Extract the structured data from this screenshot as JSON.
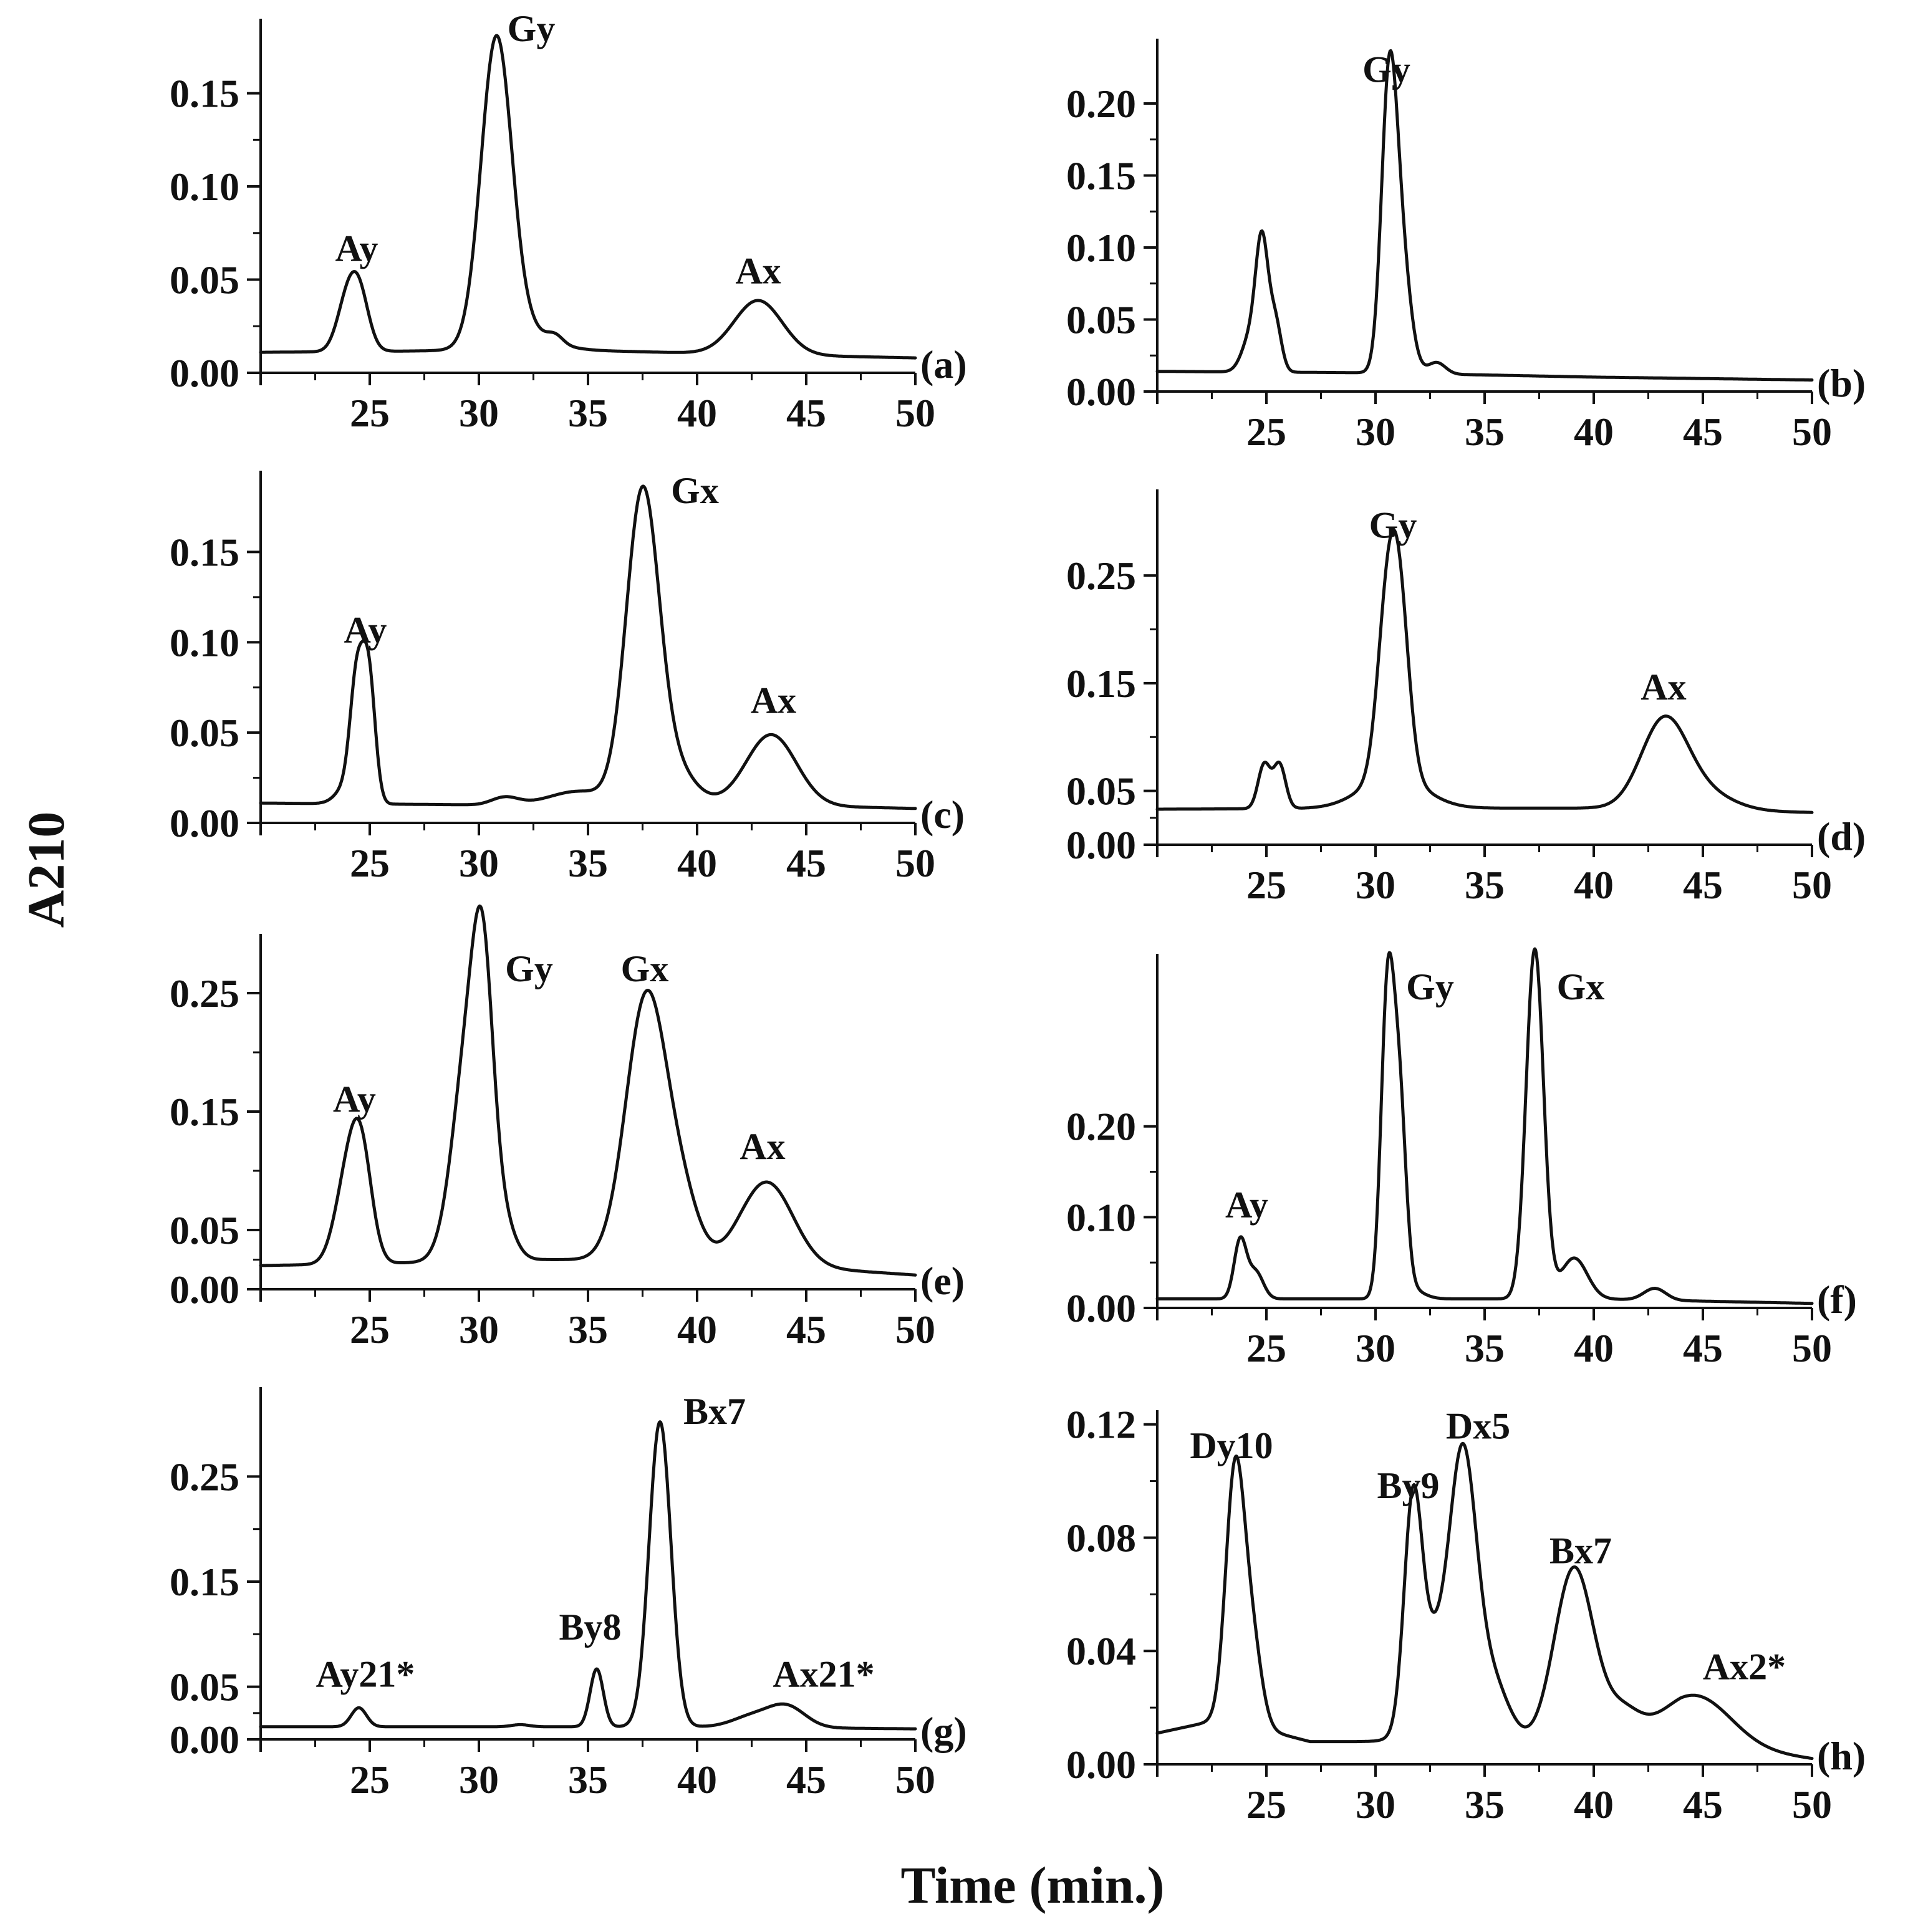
{
  "figure": {
    "ylabel": "A210",
    "xlabel": "Time (min.)"
  },
  "chart_data": [
    {
      "type": "line",
      "panel": "(a)",
      "xlim": [
        20,
        50
      ],
      "ylim": [
        0,
        0.19
      ],
      "xticks": [
        25,
        30,
        35,
        40,
        45,
        50
      ],
      "yticks": [
        0,
        0.05,
        0.1,
        0.15
      ],
      "ytick_labels": [
        "0.00",
        "0.05",
        "0.10",
        "0.15"
      ],
      "baseline": [
        [
          20,
          0.011
        ],
        [
          30,
          0.012
        ],
        [
          35,
          0.012
        ],
        [
          42,
          0.01
        ],
        [
          50,
          0.008
        ]
      ],
      "peaks": [
        {
          "t": 23.9,
          "h": 0.022,
          "w": 0.45
        },
        {
          "t": 24.5,
          "h": 0.031,
          "w": 0.45
        },
        {
          "t": 30.8,
          "h": 0.16,
          "w": 0.7
        },
        {
          "t": 31.8,
          "h": 0.012,
          "w": 1.3
        },
        {
          "t": 33.5,
          "h": 0.004,
          "w": 0.35
        },
        {
          "t": 42.8,
          "h": 0.029,
          "w": 1.1
        }
      ],
      "annotations": [
        {
          "text": "Ay",
          "x": 24.4,
          "y": 0.06
        },
        {
          "text": "Gy",
          "x": 32.4,
          "y": 0.178
        },
        {
          "text": "Ax",
          "x": 42.8,
          "y": 0.048
        }
      ]
    },
    {
      "type": "line",
      "panel": "(b)",
      "xlim": [
        20,
        50
      ],
      "ylim": [
        0,
        0.245
      ],
      "xticks": [
        25,
        30,
        35,
        40,
        45,
        50
      ],
      "yticks": [
        0,
        0.05,
        0.1,
        0.15,
        0.2
      ],
      "ytick_labels": [
        "0.00",
        "0.05",
        "0.10",
        "0.15",
        "0.20"
      ],
      "baseline": [
        [
          20,
          0.014
        ],
        [
          30,
          0.013
        ],
        [
          40,
          0.01
        ],
        [
          50,
          0.008
        ]
      ],
      "peaks": [
        {
          "t": 24.3,
          "h": 0.025,
          "w": 0.4
        },
        {
          "t": 24.8,
          "h": 0.083,
          "w": 0.28
        },
        {
          "t": 25.4,
          "h": 0.035,
          "w": 0.28
        },
        {
          "t": 30.6,
          "h": 0.17,
          "w": 0.35
        },
        {
          "t": 31.1,
          "h": 0.09,
          "w": 0.45
        },
        {
          "t": 32.8,
          "h": 0.008,
          "w": 0.4
        }
      ],
      "annotations": [
        {
          "text": "Gy",
          "x": 30.5,
          "y": 0.215
        }
      ]
    },
    {
      "type": "line",
      "panel": "(c)",
      "xlim": [
        20,
        50
      ],
      "ylim": [
        0,
        0.195
      ],
      "xticks": [
        25,
        30,
        35,
        40,
        45,
        50
      ],
      "yticks": [
        0,
        0.05,
        0.1,
        0.15
      ],
      "ytick_labels": [
        "0.00",
        "0.05",
        "0.10",
        "0.15"
      ],
      "baseline": [
        [
          20,
          0.011
        ],
        [
          30,
          0.01
        ],
        [
          36,
          0.012
        ],
        [
          50,
          0.008
        ]
      ],
      "peaks": [
        {
          "t": 24.0,
          "h": 0.01,
          "w": 0.5
        },
        {
          "t": 24.4,
          "h": 0.061,
          "w": 0.3
        },
        {
          "t": 24.95,
          "h": 0.07,
          "w": 0.3
        },
        {
          "t": 31.2,
          "h": 0.004,
          "w": 0.6
        },
        {
          "t": 34.5,
          "h": 0.006,
          "w": 1.2
        },
        {
          "t": 37.5,
          "h": 0.17,
          "w": 0.75
        },
        {
          "t": 39.0,
          "h": 0.018,
          "w": 0.9
        },
        {
          "t": 43.4,
          "h": 0.039,
          "w": 1.15
        }
      ],
      "annotations": [
        {
          "text": "Ay",
          "x": 24.8,
          "y": 0.1
        },
        {
          "text": "Gx",
          "x": 39.9,
          "y": 0.177
        },
        {
          "text": "Ax",
          "x": 43.5,
          "y": 0.061
        }
      ]
    },
    {
      "type": "line",
      "panel": "(d)",
      "xlim": [
        20,
        50
      ],
      "ylim": [
        0,
        0.33
      ],
      "xticks": [
        25,
        30,
        35,
        40,
        45,
        50
      ],
      "yticks": [
        0,
        0.05,
        0.15,
        0.25
      ],
      "ytick_labels": [
        "0.00",
        "0.05",
        "0.15",
        "0.25"
      ],
      "baseline": [
        [
          20,
          0.033
        ],
        [
          30,
          0.034
        ],
        [
          40,
          0.034
        ],
        [
          50,
          0.03
        ]
      ],
      "peaks": [
        {
          "t": 24.9,
          "h": 0.041,
          "w": 0.28
        },
        {
          "t": 25.6,
          "h": 0.041,
          "w": 0.28
        },
        {
          "t": 30.5,
          "h": 0.135,
          "w": 0.45
        },
        {
          "t": 31.1,
          "h": 0.15,
          "w": 0.45
        },
        {
          "t": 30.8,
          "h": 0.03,
          "w": 1.4
        },
        {
          "t": 43.2,
          "h": 0.077,
          "w": 1.05
        },
        {
          "t": 44.8,
          "h": 0.018,
          "w": 1.4
        }
      ],
      "annotations": [
        {
          "text": "Gy",
          "x": 30.8,
          "y": 0.285
        },
        {
          "text": "Ax",
          "x": 43.2,
          "y": 0.135
        }
      ]
    },
    {
      "type": "line",
      "panel": "(e)",
      "xlim": [
        20,
        50
      ],
      "ylim": [
        0,
        0.3
      ],
      "xticks": [
        25,
        30,
        35,
        40,
        45,
        50
      ],
      "yticks": [
        0,
        0.05,
        0.15,
        0.25
      ],
      "ytick_labels": [
        "0.00",
        "0.05",
        "0.15",
        "0.25"
      ],
      "baseline": [
        [
          20,
          0.02
        ],
        [
          26,
          0.022
        ],
        [
          28,
          0.023
        ],
        [
          33,
          0.025
        ],
        [
          36,
          0.025
        ],
        [
          42,
          0.022
        ],
        [
          50,
          0.012
        ]
      ],
      "peaks": [
        {
          "t": 23.9,
          "h": 0.06,
          "w": 0.55
        },
        {
          "t": 24.6,
          "h": 0.09,
          "w": 0.5
        },
        {
          "t": 29.6,
          "h": 0.19,
          "w": 0.75
        },
        {
          "t": 30.2,
          "h": 0.14,
          "w": 0.45
        },
        {
          "t": 31.0,
          "h": 0.03,
          "w": 0.6
        },
        {
          "t": 37.7,
          "h": 0.225,
          "w": 0.95
        },
        {
          "t": 39.4,
          "h": 0.04,
          "w": 0.75
        },
        {
          "t": 43.2,
          "h": 0.07,
          "w": 1.2
        }
      ],
      "annotations": [
        {
          "text": "Ay",
          "x": 24.3,
          "y": 0.15
        },
        {
          "text": "Gy",
          "x": 32.3,
          "y": 0.26
        },
        {
          "text": "Gx",
          "x": 37.6,
          "y": 0.26
        },
        {
          "text": "Ax",
          "x": 43.0,
          "y": 0.11
        }
      ]
    },
    {
      "type": "line",
      "panel": "(f)",
      "xlim": [
        20,
        50
      ],
      "ylim": [
        0,
        0.39
      ],
      "xticks": [
        25,
        30,
        35,
        40,
        45,
        50
      ],
      "yticks": [
        0,
        0.1,
        0.2
      ],
      "ytick_labels": [
        "0.00",
        "0.10",
        "0.20"
      ],
      "baseline": [
        [
          20,
          0.01
        ],
        [
          30,
          0.01
        ],
        [
          40,
          0.01
        ],
        [
          50,
          0.005
        ]
      ],
      "peaks": [
        {
          "t": 23.8,
          "h": 0.064,
          "w": 0.28
        },
        {
          "t": 24.5,
          "h": 0.03,
          "w": 0.35
        },
        {
          "t": 30.55,
          "h": 0.33,
          "w": 0.3
        },
        {
          "t": 31.1,
          "h": 0.2,
          "w": 0.3
        },
        {
          "t": 31.5,
          "h": 0.012,
          "w": 0.6
        },
        {
          "t": 37.3,
          "h": 0.385,
          "w": 0.4
        },
        {
          "t": 39.1,
          "h": 0.045,
          "w": 0.6
        },
        {
          "t": 42.8,
          "h": 0.013,
          "w": 0.5
        }
      ],
      "annotations": [
        {
          "text": "Ay",
          "x": 24.1,
          "y": 0.1
        },
        {
          "text": "Gy",
          "x": 32.5,
          "y": 0.34
        },
        {
          "text": "Gx",
          "x": 39.4,
          "y": 0.34
        }
      ]
    },
    {
      "type": "line",
      "panel": "(g)",
      "xlim": [
        20,
        50
      ],
      "ylim": [
        0,
        0.335
      ],
      "xticks": [
        25,
        30,
        35,
        40,
        45,
        50
      ],
      "yticks": [
        0,
        0.05,
        0.15,
        0.25
      ],
      "ytick_labels": [
        "0.00",
        "0.05",
        "0.15",
        "0.25"
      ],
      "baseline": [
        [
          20,
          0.012
        ],
        [
          30,
          0.012
        ],
        [
          40,
          0.012
        ],
        [
          50,
          0.01
        ]
      ],
      "peaks": [
        {
          "t": 24.5,
          "h": 0.018,
          "w": 0.35
        },
        {
          "t": 31.9,
          "h": 0.002,
          "w": 0.4
        },
        {
          "t": 35.4,
          "h": 0.055,
          "w": 0.3
        },
        {
          "t": 38.3,
          "h": 0.29,
          "w": 0.5
        },
        {
          "t": 42.5,
          "h": 0.01,
          "w": 0.9
        },
        {
          "t": 44.1,
          "h": 0.02,
          "w": 0.85
        }
      ],
      "annotations": [
        {
          "text": "Ay21*",
          "x": 24.8,
          "y": 0.05
        },
        {
          "text": "By8",
          "x": 35.1,
          "y": 0.095
        },
        {
          "text": "Bx7",
          "x": 40.8,
          "y": 0.3
        },
        {
          "text": "Ax21*",
          "x": 45.8,
          "y": 0.05
        }
      ]
    },
    {
      "type": "line",
      "panel": "(h)",
      "xlim": [
        20,
        50
      ],
      "ylim": [
        0,
        0.125
      ],
      "xticks": [
        25,
        30,
        35,
        40,
        45,
        50
      ],
      "yticks": [
        0,
        0.04,
        0.08,
        0.12
      ],
      "ytick_labels": [
        "0.00",
        "0.04",
        "0.08",
        "0.12"
      ],
      "baseline": [
        [
          20,
          0.011
        ],
        [
          23,
          0.016
        ],
        [
          27,
          0.008
        ],
        [
          30,
          0.008
        ],
        [
          36,
          0.007
        ],
        [
          44,
          0.008
        ],
        [
          50,
          0.002
        ]
      ],
      "peaks": [
        {
          "t": 23.55,
          "h": 0.085,
          "w": 0.42
        },
        {
          "t": 24.3,
          "h": 0.032,
          "w": 0.45
        },
        {
          "t": 31.7,
          "h": 0.07,
          "w": 0.4
        },
        {
          "t": 32.4,
          "h": 0.025,
          "w": 0.7
        },
        {
          "t": 34.0,
          "h": 0.085,
          "w": 0.6
        },
        {
          "t": 33.5,
          "h": 0.015,
          "w": 1.2
        },
        {
          "t": 35.3,
          "h": 0.02,
          "w": 0.8
        },
        {
          "t": 39.1,
          "h": 0.062,
          "w": 0.9
        },
        {
          "t": 41.3,
          "h": 0.01,
          "w": 0.8
        },
        {
          "t": 44.7,
          "h": 0.017,
          "w": 1.6
        }
      ],
      "annotations": [
        {
          "text": "Dy10",
          "x": 23.4,
          "y": 0.108
        },
        {
          "text": "By9",
          "x": 31.5,
          "y": 0.094
        },
        {
          "text": "Dx5",
          "x": 34.7,
          "y": 0.115
        },
        {
          "text": "Bx7",
          "x": 39.4,
          "y": 0.071
        },
        {
          "text": "Ax2*",
          "x": 46.9,
          "y": 0.03
        }
      ]
    }
  ]
}
